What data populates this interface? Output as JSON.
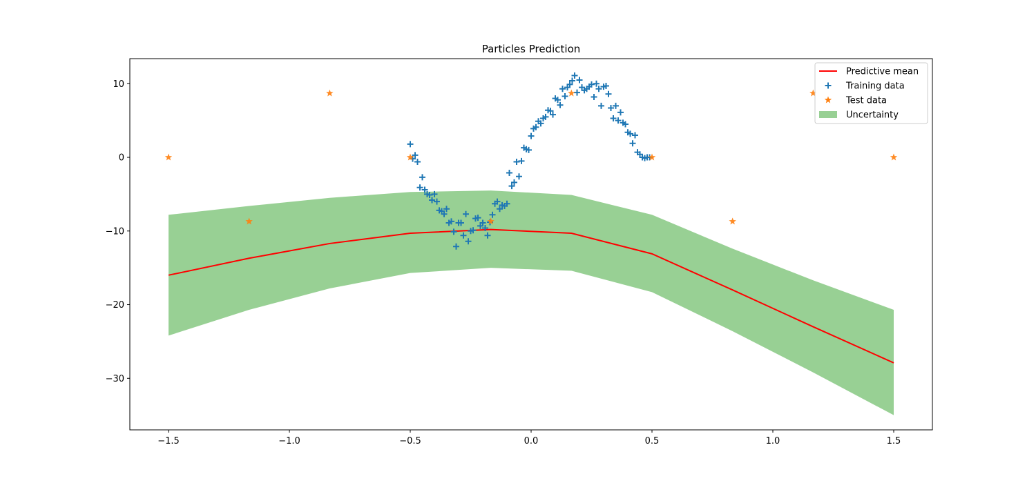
{
  "chart_data": {
    "type": "line",
    "title": "Particles Prediction",
    "xlabel": "",
    "ylabel": "",
    "xlim": [
      -1.66,
      1.66
    ],
    "ylim": [
      -37.0,
      13.4
    ],
    "xticks": [
      -1.5,
      -1.0,
      -0.5,
      0.0,
      0.5,
      1.0,
      1.5
    ],
    "xtick_labels": [
      "−1.5",
      "−1.0",
      "−0.5",
      "0.0",
      "0.5",
      "1.0",
      "1.5"
    ],
    "yticks": [
      10,
      0,
      -10,
      -20,
      -30
    ],
    "ytick_labels": [
      "10",
      "0",
      "−10",
      "−20",
      "−30"
    ],
    "grid": false,
    "legend_position": "top-right",
    "colors": {
      "mean": "#ff0000",
      "training": "#1f77b4",
      "test": "#ff7f0e",
      "uncertainty": "#98d094"
    },
    "legend": [
      {
        "label": "Predictive mean",
        "kind": "line"
      },
      {
        "label": "Training data",
        "kind": "plus"
      },
      {
        "label": "Test data",
        "kind": "star"
      },
      {
        "label": "Uncertainty",
        "kind": "patch"
      }
    ],
    "predictive_mean": {
      "x": [
        -1.5,
        -1.1667,
        -0.8333,
        -0.5,
        -0.1667,
        0.1667,
        0.5,
        0.8333,
        1.1667,
        1.5
      ],
      "y": [
        -16.0,
        -13.7,
        -11.7,
        -10.3,
        -9.8,
        -10.3,
        -13.1,
        -18.0,
        -23.0,
        -27.9
      ]
    },
    "uncertainty": {
      "x": [
        -1.5,
        -1.1667,
        -0.8333,
        -0.5,
        -0.1667,
        0.1667,
        0.5,
        0.8333,
        1.1667,
        1.5
      ],
      "upper": [
        -7.8,
        -6.6,
        -5.5,
        -4.7,
        -4.5,
        -5.1,
        -7.8,
        -12.4,
        -16.7,
        -20.7
      ],
      "lower": [
        -24.2,
        -20.7,
        -17.8,
        -15.7,
        -15.0,
        -15.4,
        -18.3,
        -23.6,
        -29.2,
        -35.0
      ]
    },
    "test_data": {
      "x": [
        -1.5,
        -1.1667,
        -0.8333,
        -0.5,
        -0.1667,
        0.1667,
        0.5,
        0.8333,
        1.1667,
        1.5
      ],
      "y": [
        0.0,
        -8.7,
        8.7,
        0.0,
        -8.7,
        8.7,
        0.0,
        -8.7,
        8.7,
        0.0
      ]
    },
    "training_data": {
      "x": [
        -0.5,
        -0.49,
        -0.48,
        -0.47,
        -0.46,
        -0.45,
        -0.44,
        -0.43,
        -0.42,
        -0.41,
        -0.4,
        -0.39,
        -0.38,
        -0.37,
        -0.36,
        -0.35,
        -0.34,
        -0.33,
        -0.32,
        -0.31,
        -0.3,
        -0.29,
        -0.28,
        -0.27,
        -0.26,
        -0.25,
        -0.24,
        -0.23,
        -0.22,
        -0.21,
        -0.2,
        -0.19,
        -0.18,
        -0.17,
        -0.16,
        -0.15,
        -0.14,
        -0.13,
        -0.12,
        -0.11,
        -0.1,
        -0.09,
        -0.08,
        -0.07,
        -0.06,
        -0.05,
        -0.04,
        -0.03,
        -0.02,
        -0.01,
        0.0,
        0.01,
        0.02,
        0.03,
        0.04,
        0.05,
        0.06,
        0.07,
        0.08,
        0.09,
        0.1,
        0.11,
        0.12,
        0.13,
        0.14,
        0.15,
        0.16,
        0.17,
        0.18,
        0.19,
        0.2,
        0.21,
        0.22,
        0.23,
        0.24,
        0.25,
        0.26,
        0.27,
        0.28,
        0.29,
        0.3,
        0.31,
        0.32,
        0.33,
        0.34,
        0.35,
        0.36,
        0.37,
        0.38,
        0.39,
        0.4,
        0.41,
        0.42,
        0.43,
        0.44,
        0.45,
        0.46,
        0.47,
        0.48,
        0.49
      ],
      "y": [
        1.8,
        -0.2,
        0.3,
        -0.6,
        -4.1,
        -2.7,
        -4.4,
        -5.0,
        -5.1,
        -5.8,
        -5.0,
        -6.0,
        -7.2,
        -7.3,
        -7.7,
        -7.0,
        -8.9,
        -8.7,
        -10.1,
        -12.1,
        -8.9,
        -8.9,
        -10.6,
        -7.7,
        -11.4,
        -10.0,
        -9.9,
        -8.3,
        -8.2,
        -9.3,
        -8.9,
        -9.6,
        -10.6,
        -8.8,
        -7.8,
        -6.3,
        -6.0,
        -7.0,
        -6.5,
        -6.6,
        -6.3,
        -2.1,
        -3.9,
        -3.4,
        -0.6,
        -2.6,
        -0.5,
        1.3,
        1.1,
        1.0,
        2.9,
        3.9,
        4.1,
        4.9,
        4.6,
        5.3,
        5.5,
        6.4,
        6.3,
        5.8,
        8.0,
        7.8,
        7.1,
        9.3,
        8.3,
        9.5,
        9.9,
        10.4,
        11.1,
        8.8,
        10.5,
        9.5,
        9.1,
        9.3,
        9.6,
        9.9,
        8.2,
        10.0,
        9.3,
        7.0,
        9.6,
        9.7,
        8.6,
        6.7,
        5.3,
        7.0,
        5.0,
        6.1,
        4.7,
        4.5,
        3.4,
        3.2,
        1.9,
        3.0,
        0.7,
        0.4,
        0.0,
        -0.1,
        0.0,
        0.0
      ]
    }
  }
}
